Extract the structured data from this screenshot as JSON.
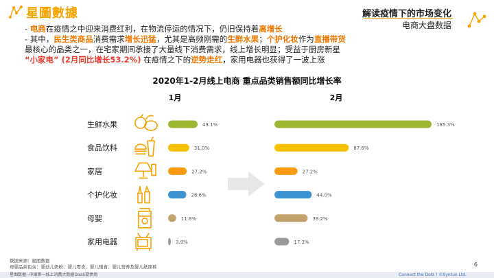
{
  "header": {
    "brand": "星圖數據",
    "title": "解读疫情下的市场变化",
    "subtitle": "电商大盘数据"
  },
  "bullets": {
    "line1": [
      {
        "t": "- ",
        "s": ""
      },
      {
        "t": "电商",
        "s": "hl"
      },
      {
        "t": "在疫情之中迎来消费红利，在物流停运的情况下，仍旧保持着",
        "s": ""
      },
      {
        "t": "高增长",
        "s": "hl"
      }
    ],
    "line2": [
      {
        "t": "- 其中，",
        "s": ""
      },
      {
        "t": "民生类商品",
        "s": "hl"
      },
      {
        "t": "消费需求",
        "s": ""
      },
      {
        "t": "增长迅猛",
        "s": "hl"
      },
      {
        "t": "，尤其是高频刚需的",
        "s": ""
      },
      {
        "t": "生鲜水果",
        "s": "hl"
      },
      {
        "t": "；",
        "s": ""
      },
      {
        "t": "个护化妆",
        "s": "hl"
      },
      {
        "t": "作为",
        "s": ""
      },
      {
        "t": "直播带货",
        "s": "hl"
      }
    ],
    "line3": [
      {
        "t": "最核心的品类之一，在宅家期间承接了大量线下消费需求，线上增长明显；受益于厨房新星",
        "s": ""
      }
    ],
    "line4": [
      {
        "t": "“小家电” (2月同比增长53.2%)",
        "s": "hl-red"
      },
      {
        "t": " 在疫情之下的",
        "s": ""
      },
      {
        "t": "逆势走红",
        "s": "hl"
      },
      {
        "t": "，家用电器也获得了一波上涨",
        "s": ""
      }
    ]
  },
  "chart_data": {
    "type": "bar",
    "title": "2020年1-2月线上电商 重点品类销售额同比增长率",
    "categories": [
      "生鲜水果",
      "食品饮料",
      "家居",
      "个护化妆",
      "母婴",
      "家用电器"
    ],
    "icons": [
      "fruit-icon",
      "food-drink-icon",
      "lamp-icon",
      "cosmetics-icon",
      "baby-formula-icon",
      "tv-icon"
    ],
    "colors": [
      "#9cb832",
      "#f7c100",
      "#f79a10",
      "#3d93d1",
      "#c3a36d",
      "#9b9b9b"
    ],
    "series": [
      {
        "name": "1月",
        "values": [
          43.1,
          31.0,
          27.2,
          26.6,
          11.8,
          3.9
        ],
        "labels": [
          "43.1%",
          "31.0%",
          "27.2%",
          "26.6%",
          "11.8%",
          "3.9%"
        ]
      },
      {
        "name": "2月",
        "values": [
          185.3,
          87.6,
          27.2,
          44.0,
          39.2,
          17.3
        ],
        "labels": [
          "185.3%",
          "87.6%",
          "27.2%",
          "44.0%",
          "39.2%",
          "17.3%"
        ]
      }
    ]
  },
  "footer": {
    "source": "数据来源：星图数据",
    "note": "母婴品类包含：婴幼儿奶粉、婴儿零食、婴儿辅食、婴儿营养及婴儿纸尿裤",
    "page": "6",
    "bar_left": "星图数据--中国第一线上消费大数据DaaS提供商",
    "bar_right": "Connect the Dots ! ©Syntun Ltd."
  }
}
